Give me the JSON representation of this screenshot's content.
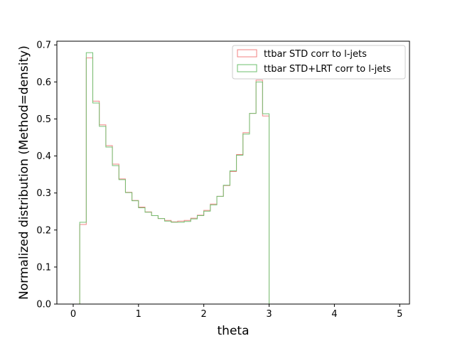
{
  "chart_data": {
    "type": "line",
    "histtype": "step",
    "xlabel": "theta",
    "ylabel": "Normalized distribution (Method=density)",
    "xlim": [
      -0.25,
      5.15
    ],
    "ylim": [
      0,
      0.71
    ],
    "xticks": [
      0,
      1,
      2,
      3,
      4,
      5
    ],
    "xtick_labels": [
      "0",
      "1",
      "2",
      "3",
      "4",
      "5"
    ],
    "yticks": [
      0.0,
      0.1,
      0.2,
      0.3,
      0.4,
      0.5,
      0.6,
      0.7
    ],
    "ytick_labels": [
      "0.0",
      "0.1",
      "0.2",
      "0.3",
      "0.4",
      "0.5",
      "0.6",
      "0.7"
    ],
    "grid": false,
    "legend_position": "top-right",
    "bin_edges": [
      0.1,
      0.2,
      0.3,
      0.4,
      0.5,
      0.6,
      0.7,
      0.8,
      0.9,
      1.0,
      1.1,
      1.2,
      1.3,
      1.4,
      1.5,
      1.6,
      1.7,
      1.8,
      1.9,
      2.0,
      2.1,
      2.2,
      2.3,
      2.4,
      2.5,
      2.6,
      2.7,
      2.8,
      2.9,
      3.0,
      3.1,
      3.2,
      3.3,
      3.4,
      3.5,
      3.6,
      3.7,
      3.8,
      3.9,
      4.0,
      4.1,
      4.2,
      4.3,
      4.4,
      4.5,
      4.6,
      4.7,
      4.8,
      4.9
    ],
    "series": [
      {
        "name": "ttbar STD corr to l-jets",
        "color": "#f08080",
        "values": [
          0.215,
          0.665,
          0.548,
          0.484,
          0.428,
          0.378,
          0.338,
          0.302,
          0.28,
          0.262,
          0.249,
          0.239,
          0.231,
          0.226,
          0.222,
          0.224,
          0.226,
          0.232,
          0.24,
          0.253,
          0.27,
          0.291,
          0.32,
          0.358,
          0.404,
          0.463,
          0.515,
          0.605,
          0.508,
          0,
          0,
          0,
          0,
          0,
          0,
          0,
          0,
          0,
          0,
          0,
          0,
          0,
          0,
          0,
          0,
          0,
          0,
          0
        ]
      },
      {
        "name": "ttbar STD+LRT corr to l-jets",
        "color": "#6dbf6d",
        "values": [
          0.221,
          0.679,
          0.543,
          0.48,
          0.424,
          0.374,
          0.336,
          0.301,
          0.279,
          0.26,
          0.248,
          0.239,
          0.231,
          0.224,
          0.221,
          0.221,
          0.223,
          0.23,
          0.239,
          0.251,
          0.268,
          0.291,
          0.321,
          0.36,
          0.402,
          0.459,
          0.515,
          0.6,
          0.514,
          0,
          0,
          0,
          0,
          0,
          0,
          0,
          0,
          0,
          0,
          0,
          0,
          0,
          0,
          0,
          0,
          0,
          0,
          0
        ]
      }
    ]
  }
}
